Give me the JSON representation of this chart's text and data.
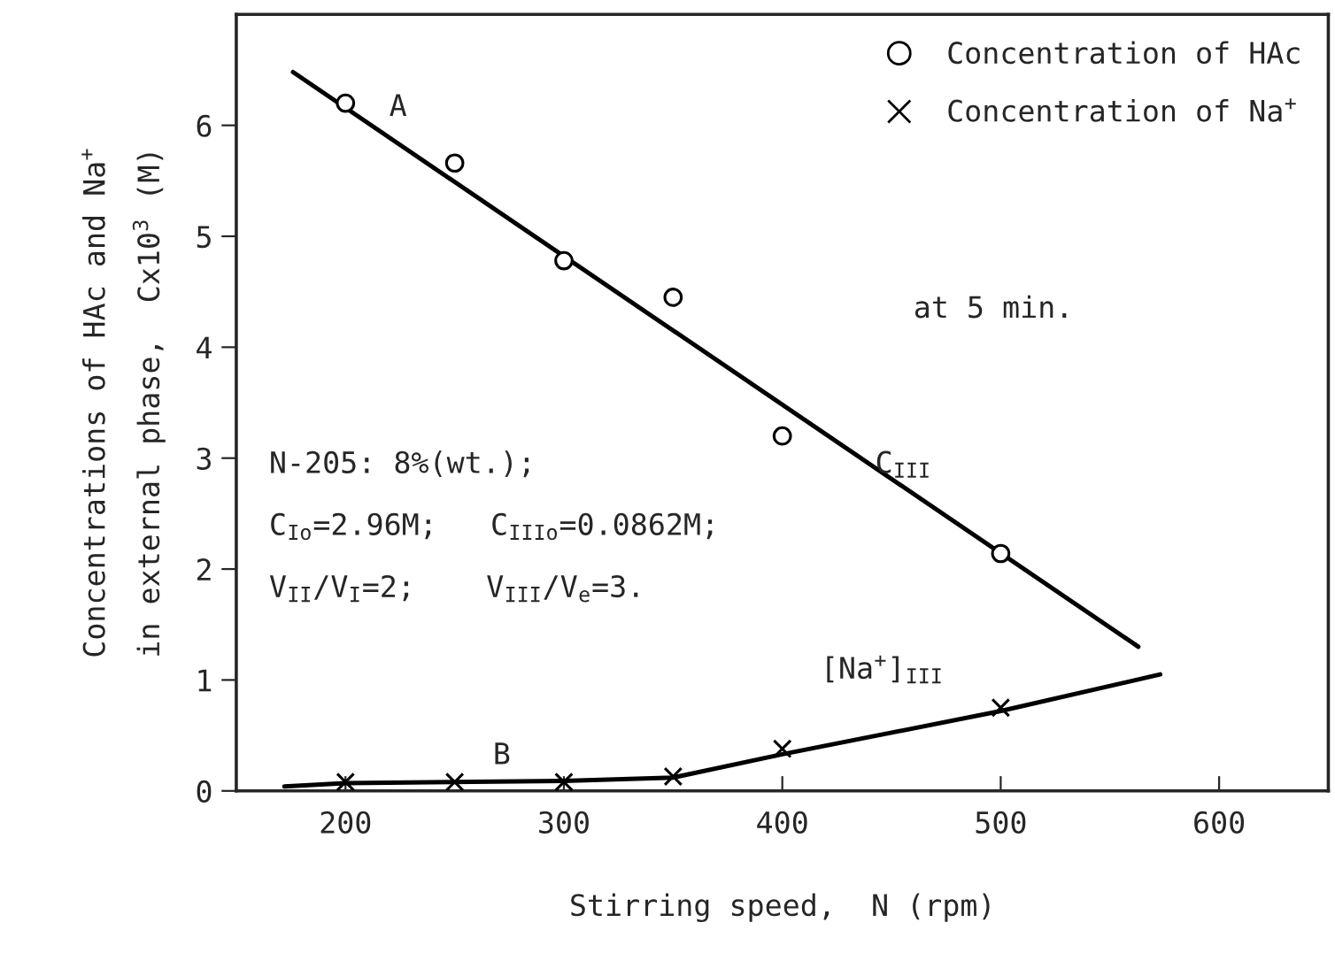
{
  "chart_data": {
    "type": "scatter",
    "xlabel": "Stirring speed,  N (rpm)",
    "ylabel": "Concentrations of HAc and Na$^{+}$\nin external phase,  Cx10$^{3}$ (M)",
    "xlim": [
      150,
      650
    ],
    "ylim": [
      0,
      7
    ],
    "xticks": [
      200,
      300,
      400,
      500,
      600
    ],
    "yticks": [
      0,
      1,
      2,
      3,
      4,
      5,
      6
    ],
    "grid": false,
    "legend": "top right",
    "series": [
      {
        "name": "Concentration of HAc",
        "marker": "circle",
        "color": "#000000",
        "x": [
          200,
          250,
          300,
          350,
          400,
          500
        ],
        "values": [
          6.2,
          5.66,
          4.78,
          4.45,
          3.2,
          2.14
        ]
      },
      {
        "name": "Concentration of Na$^{+}$",
        "marker": "cross",
        "color": "#000000",
        "x": [
          200,
          250,
          300,
          350,
          400,
          500
        ],
        "values": [
          0.08,
          0.08,
          0.08,
          0.13,
          0.38,
          0.75
        ]
      },
      {
        "type": "line",
        "color": "#000000",
        "x": [
          176,
          563
        ],
        "values": [
          6.48,
          1.3
        ]
      },
      {
        "type": "line",
        "color": "#000000",
        "x": [
          172,
          200,
          300,
          350,
          400,
          500,
          573
        ],
        "values": [
          0.04,
          0.07,
          0.09,
          0.12,
          0.33,
          0.72,
          1.05
        ]
      }
    ],
    "annotations": [
      "A",
      "B",
      "C$_{III}$",
      "[Na$^{+}$]$_{III}$",
      "at 5 min.",
      "N-205: 8%(wt.);",
      "C$_{Io}$=2.96M;   C$_{IIIo}$=0.0862M;",
      "V$_{II}$/V$_{I}$=2;    V$_{III}$/V$_{e}$=3."
    ]
  }
}
